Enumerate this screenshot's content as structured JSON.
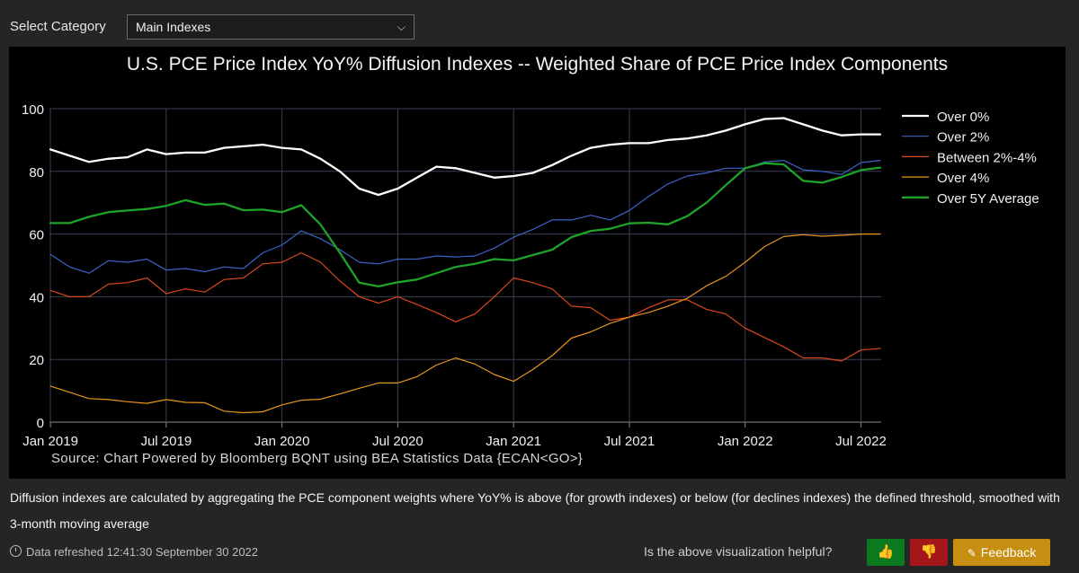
{
  "category": {
    "label": "Select Category",
    "selected": "Main Indexes"
  },
  "chart_data": {
    "type": "line",
    "title": "U.S. PCE Price Index YoY% Diffusion Indexes -- Weighted Share of PCE Price Index Components",
    "xlabel": "",
    "ylabel": "",
    "ylim": [
      0,
      100
    ],
    "yticks": [
      0,
      20,
      40,
      60,
      80,
      100
    ],
    "xlim": [
      "2019-01",
      "2022-08"
    ],
    "xticks": [
      "Jan 2019",
      "Jul 2019",
      "Jan 2020",
      "Jul 2020",
      "Jan 2021",
      "Jul 2021",
      "Jan 2022",
      "Jul 2022"
    ],
    "legend_position": "right",
    "grid": true,
    "x": [
      "2019-01",
      "2019-02",
      "2019-03",
      "2019-04",
      "2019-05",
      "2019-06",
      "2019-07",
      "2019-08",
      "2019-09",
      "2019-10",
      "2019-11",
      "2019-12",
      "2020-01",
      "2020-02",
      "2020-03",
      "2020-04",
      "2020-05",
      "2020-06",
      "2020-07",
      "2020-08",
      "2020-09",
      "2020-10",
      "2020-11",
      "2020-12",
      "2021-01",
      "2021-02",
      "2021-03",
      "2021-04",
      "2021-05",
      "2021-06",
      "2021-07",
      "2021-08",
      "2021-09",
      "2021-10",
      "2021-11",
      "2021-12",
      "2022-01",
      "2022-02",
      "2022-03",
      "2022-04",
      "2022-05",
      "2022-06",
      "2022-07",
      "2022-08"
    ],
    "series": [
      {
        "name": "Over 0%",
        "color": "#ffffff",
        "width": 2.3,
        "values": [
          87,
          85,
          83,
          84,
          84.5,
          87,
          85.5,
          86,
          86,
          87.5,
          88,
          88.5,
          87.5,
          87,
          84,
          80,
          74.5,
          72.5,
          74.5,
          78,
          81.5,
          81,
          79.5,
          78,
          78.5,
          79.5,
          82,
          85,
          87.5,
          88.5,
          89,
          89,
          90,
          90.5,
          91.5,
          93,
          95,
          96.7,
          97,
          95,
          93,
          91.5,
          91.8,
          91.8
        ]
      },
      {
        "name": "Over 2%",
        "color": "#3f62c8",
        "width": 1.2,
        "values": [
          53.5,
          49.5,
          47.5,
          51.5,
          51,
          52,
          48.5,
          49,
          48,
          49.5,
          49,
          54,
          56.5,
          61,
          58.5,
          55,
          51,
          50.5,
          52,
          52,
          53,
          52.7,
          53,
          55.5,
          59,
          61.5,
          64.5,
          64.5,
          66,
          64.5,
          67.5,
          72,
          76,
          78.5,
          79.5,
          81,
          81,
          83,
          83.5,
          80.5,
          80,
          79,
          82.8,
          83.5
        ]
      },
      {
        "name": "Between 2%-4%",
        "color": "#d9481a",
        "width": 1.2,
        "values": [
          42,
          40,
          40,
          44,
          44.5,
          46,
          41,
          42.5,
          41.5,
          45.5,
          46,
          50.5,
          51,
          54,
          51,
          45,
          40,
          38,
          40,
          37.5,
          35,
          32,
          34.5,
          40,
          46,
          44.5,
          42.5,
          37,
          36.5,
          32.5,
          33.5,
          36.5,
          39,
          39,
          36,
          34.5,
          30,
          27,
          24,
          20.5,
          20.5,
          19.5,
          23,
          23.5
        ]
      },
      {
        "name": "Over 4%",
        "color": "#e8951f",
        "width": 1.2,
        "values": [
          11.5,
          9.5,
          7.5,
          7.2,
          6.5,
          6,
          7.2,
          6.3,
          6.2,
          3.5,
          3,
          3.3,
          5.5,
          7,
          7.3,
          9,
          10.8,
          12.5,
          12.5,
          14.5,
          18.2,
          20.5,
          18.5,
          15.2,
          13,
          16.8,
          21.2,
          26.8,
          28.8,
          31.5,
          33.5,
          35,
          37,
          39.5,
          43.5,
          46.5,
          51,
          56,
          59.2,
          59.8,
          59.3,
          59.6,
          60,
          60
        ]
      },
      {
        "name": "Over 5Y Average",
        "color": "#1ea32a",
        "width": 2.3,
        "values": [
          63.5,
          63.5,
          65.5,
          67,
          67.5,
          68,
          69,
          70.8,
          69.3,
          69.7,
          67.6,
          67.8,
          67,
          69.2,
          63,
          54,
          44.5,
          43.3,
          44.6,
          45.5,
          47.5,
          49.5,
          50.5,
          52,
          51.6,
          53.3,
          55,
          59,
          61,
          61.7,
          63.4,
          63.6,
          63.1,
          65.7,
          70,
          75.6,
          81,
          82.6,
          82.2,
          77,
          76.4,
          78.2,
          80.4,
          81.2
        ]
      }
    ]
  },
  "source_text": "Source: Chart Powered by Bloomberg BQNT using BEA Statistics Data   {ECAN<GO>}",
  "note_text": "Diffusion indexes are calculated by aggregating the PCE component weights where YoY% is above (for growth indexes) or below (for declines indexes) the defined threshold, smoothed with 3-month moving average",
  "refresh_text": "Data refreshed 12:41:30 September 30 2022",
  "feedback": {
    "question": "Is the above visualization helpful?",
    "thumbs_up_icon": "thumbs-up-icon",
    "thumbs_down_icon": "thumbs-down-icon",
    "button_label": "Feedback",
    "colors": {
      "up": "#0b7a1e",
      "down": "#a5161a",
      "feedback": "#c78f12"
    }
  }
}
